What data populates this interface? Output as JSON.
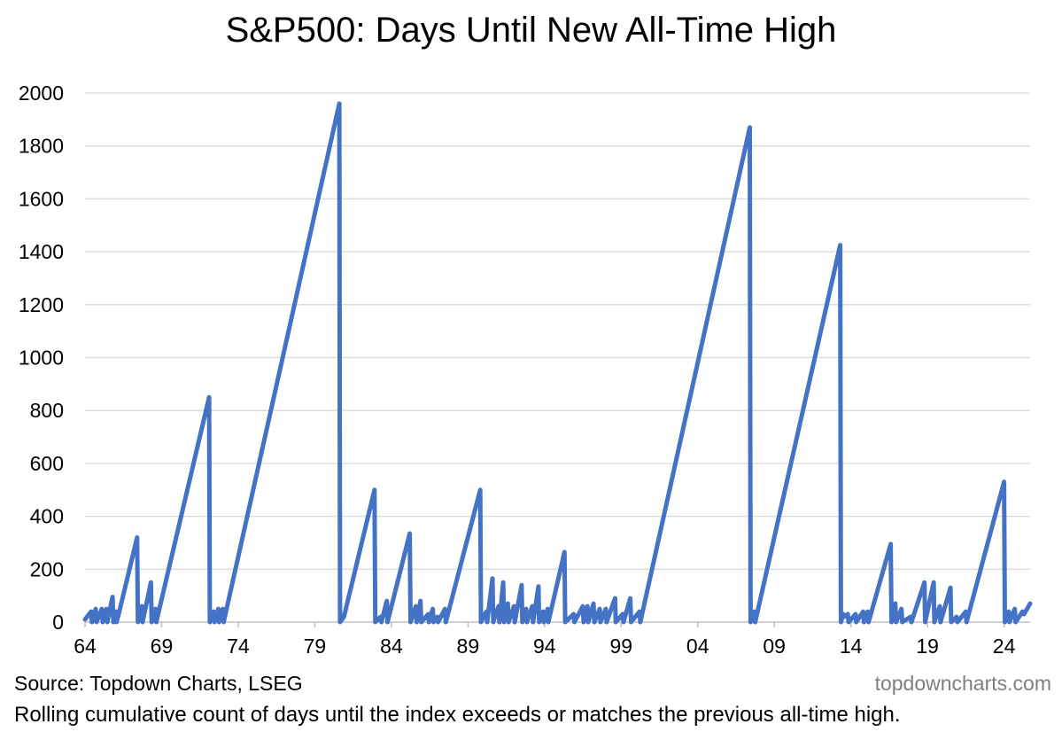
{
  "chart_data": {
    "type": "line",
    "title": "S&P500: Days Until New All-Time High",
    "xlabel": "",
    "ylabel": "",
    "xlim": [
      1964,
      2025.7
    ],
    "ylim": [
      0,
      2000
    ],
    "y_ticks": [
      0,
      200,
      400,
      600,
      800,
      1000,
      1200,
      1400,
      1600,
      1800,
      2000
    ],
    "x_ticks": [
      {
        "value": 1964,
        "label": "64"
      },
      {
        "value": 1969,
        "label": "69"
      },
      {
        "value": 1974,
        "label": "74"
      },
      {
        "value": 1979,
        "label": "79"
      },
      {
        "value": 1984,
        "label": "84"
      },
      {
        "value": 1989,
        "label": "89"
      },
      {
        "value": 1994,
        "label": "94"
      },
      {
        "value": 1999,
        "label": "99"
      },
      {
        "value": 2004,
        "label": "04"
      },
      {
        "value": 2009,
        "label": "09"
      },
      {
        "value": 2014,
        "label": "14"
      },
      {
        "value": 2019,
        "label": "19"
      },
      {
        "value": 2024,
        "label": "24"
      }
    ],
    "grid": "horizontal",
    "legend": "none",
    "color": "#4472C4",
    "series": [
      {
        "points": [
          [
            1964.0,
            10
          ],
          [
            1964.4,
            40
          ],
          [
            1964.45,
            0
          ],
          [
            1964.7,
            50
          ],
          [
            1964.75,
            0
          ],
          [
            1965.1,
            50
          ],
          [
            1965.15,
            0
          ],
          [
            1965.4,
            50
          ],
          [
            1965.45,
            0
          ],
          [
            1965.8,
            95
          ],
          [
            1965.85,
            0
          ],
          [
            1966.0,
            40
          ],
          [
            1966.05,
            0
          ],
          [
            1966.2,
            30
          ],
          [
            1967.4,
            320
          ],
          [
            1967.45,
            0
          ],
          [
            1967.7,
            60
          ],
          [
            1967.75,
            0
          ],
          [
            1968.3,
            150
          ],
          [
            1968.35,
            0
          ],
          [
            1968.6,
            50
          ],
          [
            1968.65,
            0
          ],
          [
            1972.1,
            850
          ],
          [
            1972.15,
            0
          ],
          [
            1972.4,
            40
          ],
          [
            1972.45,
            0
          ],
          [
            1972.7,
            50
          ],
          [
            1972.75,
            0
          ],
          [
            1973.0,
            50
          ],
          [
            1973.05,
            0
          ],
          [
            1980.6,
            1960
          ],
          [
            1980.65,
            0
          ],
          [
            1980.9,
            20
          ],
          [
            1982.9,
            500
          ],
          [
            1982.95,
            0
          ],
          [
            1983.3,
            20
          ],
          [
            1983.35,
            0
          ],
          [
            1983.7,
            80
          ],
          [
            1983.75,
            0
          ],
          [
            1985.2,
            335
          ],
          [
            1985.25,
            0
          ],
          [
            1985.6,
            60
          ],
          [
            1985.65,
            0
          ],
          [
            1985.9,
            80
          ],
          [
            1985.95,
            0
          ],
          [
            1986.4,
            30
          ],
          [
            1986.45,
            0
          ],
          [
            1986.7,
            50
          ],
          [
            1986.75,
            0
          ],
          [
            1987.0,
            20
          ],
          [
            1987.05,
            0
          ],
          [
            1987.5,
            50
          ],
          [
            1987.55,
            0
          ],
          [
            1989.8,
            500
          ],
          [
            1989.85,
            0
          ],
          [
            1990.2,
            40
          ],
          [
            1990.25,
            0
          ],
          [
            1990.6,
            165
          ],
          [
            1990.65,
            0
          ],
          [
            1991.0,
            60
          ],
          [
            1991.05,
            0
          ],
          [
            1991.3,
            150
          ],
          [
            1991.35,
            0
          ],
          [
            1991.6,
            70
          ],
          [
            1991.65,
            0
          ],
          [
            1992.0,
            60
          ],
          [
            1992.05,
            0
          ],
          [
            1992.5,
            140
          ],
          [
            1992.55,
            0
          ],
          [
            1992.8,
            50
          ],
          [
            1992.85,
            0
          ],
          [
            1993.2,
            60
          ],
          [
            1993.25,
            0
          ],
          [
            1993.6,
            135
          ],
          [
            1993.65,
            0
          ],
          [
            1993.9,
            40
          ],
          [
            1993.95,
            0
          ],
          [
            1994.2,
            50
          ],
          [
            1994.25,
            0
          ],
          [
            1995.3,
            265
          ],
          [
            1995.35,
            0
          ],
          [
            1995.9,
            30
          ],
          [
            1995.95,
            0
          ],
          [
            1996.5,
            60
          ],
          [
            1996.55,
            0
          ],
          [
            1996.8,
            60
          ],
          [
            1996.85,
            0
          ],
          [
            1997.2,
            70
          ],
          [
            1997.25,
            0
          ],
          [
            1997.6,
            50
          ],
          [
            1997.65,
            0
          ],
          [
            1998.0,
            50
          ],
          [
            1998.05,
            0
          ],
          [
            1998.6,
            90
          ],
          [
            1998.65,
            0
          ],
          [
            1999.1,
            30
          ],
          [
            1999.15,
            0
          ],
          [
            1999.6,
            90
          ],
          [
            1999.65,
            0
          ],
          [
            2000.2,
            40
          ],
          [
            2000.25,
            0
          ],
          [
            2007.4,
            1870
          ],
          [
            2007.45,
            0
          ],
          [
            2007.7,
            40
          ],
          [
            2007.75,
            0
          ],
          [
            2013.3,
            1425
          ],
          [
            2013.35,
            0
          ],
          [
            2013.5,
            30
          ],
          [
            2013.55,
            20
          ],
          [
            2013.8,
            30
          ],
          [
            2013.85,
            0
          ],
          [
            2014.3,
            30
          ],
          [
            2014.35,
            0
          ],
          [
            2014.8,
            40
          ],
          [
            2014.85,
            0
          ],
          [
            2015.1,
            40
          ],
          [
            2015.15,
            0
          ],
          [
            2016.6,
            295
          ],
          [
            2016.65,
            0
          ],
          [
            2016.9,
            70
          ],
          [
            2016.95,
            0
          ],
          [
            2017.3,
            50
          ],
          [
            2017.35,
            0
          ],
          [
            2017.9,
            20
          ],
          [
            2017.95,
            0
          ],
          [
            2018.8,
            150
          ],
          [
            2018.85,
            0
          ],
          [
            2019.4,
            150
          ],
          [
            2019.45,
            0
          ],
          [
            2019.8,
            60
          ],
          [
            2019.85,
            0
          ],
          [
            2020.5,
            130
          ],
          [
            2020.55,
            0
          ],
          [
            2020.9,
            20
          ],
          [
            2020.95,
            0
          ],
          [
            2021.5,
            40
          ],
          [
            2021.55,
            0
          ],
          [
            2024.0,
            530
          ],
          [
            2024.05,
            0
          ],
          [
            2024.3,
            40
          ],
          [
            2024.35,
            0
          ],
          [
            2024.7,
            50
          ],
          [
            2024.75,
            0
          ],
          [
            2025.2,
            40
          ],
          [
            2025.3,
            30
          ],
          [
            2025.7,
            70
          ]
        ]
      }
    ]
  },
  "source_text": "Source: Topdown Charts, LSEG",
  "site_text": "topdowncharts.com",
  "footnote_text": "Rolling cumulative count of days until the index exceeds or matches the previous all-time high."
}
